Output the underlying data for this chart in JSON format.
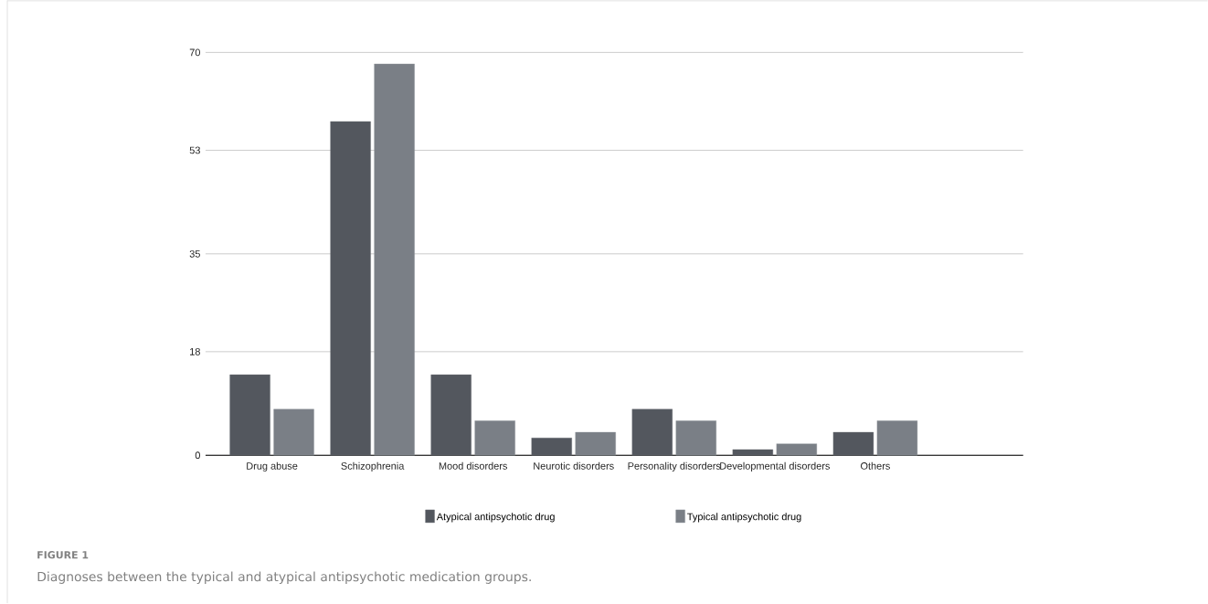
{
  "chart_data": {
    "type": "bar",
    "categories": [
      "Drug abuse",
      "Schizophrenia",
      "Mood disorders",
      "Neurotic disorders",
      "Personality disorders",
      "Developmental disorders",
      "Others",
      null
    ],
    "series": [
      {
        "name": "Atypical antipsychotic drug",
        "color": "#53575e",
        "values": [
          14,
          58,
          14,
          3,
          8,
          1,
          4,
          null
        ]
      },
      {
        "name": "Typical antipsychotic drug",
        "color": "#7a7f86",
        "values": [
          8,
          68,
          6,
          4,
          6,
          2,
          6,
          null
        ]
      }
    ],
    "ylim": [
      0,
      70
    ],
    "yticks": [
      0,
      18,
      35,
      53,
      70
    ],
    "grid": "y",
    "legend": "bottom",
    "annotations": [
      "FIGURE 1",
      "Diagnoses between the typical and atypical antipsychotic medication groups."
    ]
  }
}
